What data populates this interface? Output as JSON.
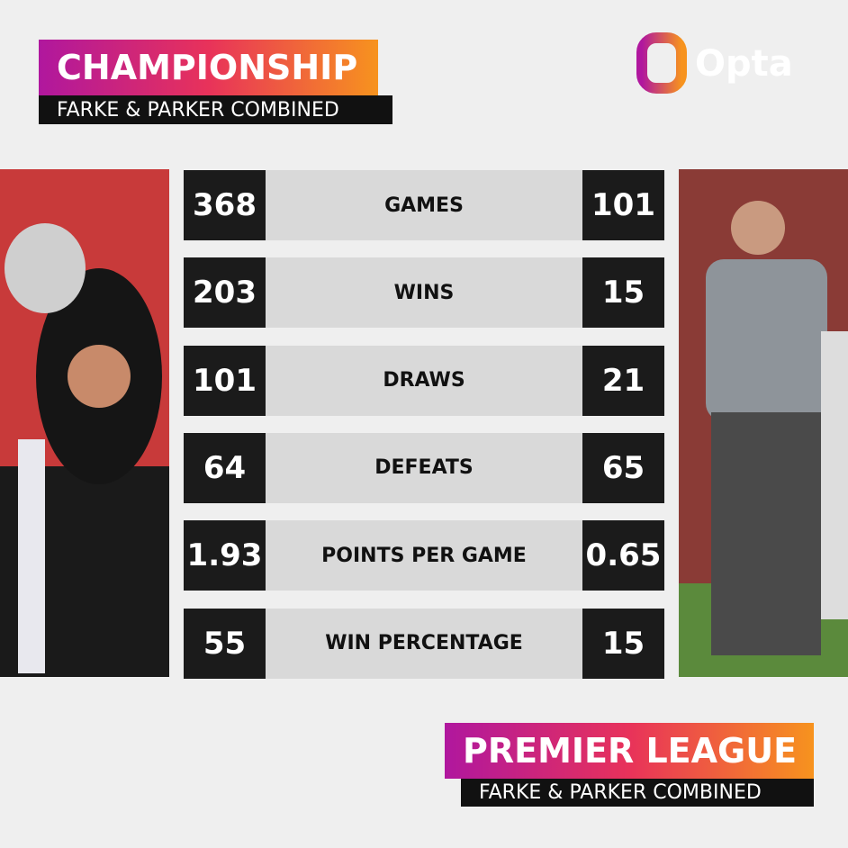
{
  "header": {
    "title": "CHAMPIONSHIP",
    "subtitle": "FARKE & PARKER COMBINED"
  },
  "logo": {
    "text": "Opta"
  },
  "table": {
    "rows": [
      {
        "left": 368,
        "label": "GAMES",
        "right": 101
      },
      {
        "left": 203,
        "label": "WINS",
        "right": 15
      },
      {
        "left": 101,
        "label": "DRAWS",
        "right": 21
      },
      {
        "left": 64,
        "label": "DEFEATS",
        "right": 65
      },
      {
        "left": 1.93,
        "label": "POINTS PER GAME",
        "right": 0.65
      },
      {
        "left": 55,
        "label": "WIN PERCENTAGE",
        "right": 15
      }
    ]
  },
  "footer": {
    "title": "PREMIER LEAGUE",
    "subtitle": "FARKE & PARKER COMBINED"
  }
}
